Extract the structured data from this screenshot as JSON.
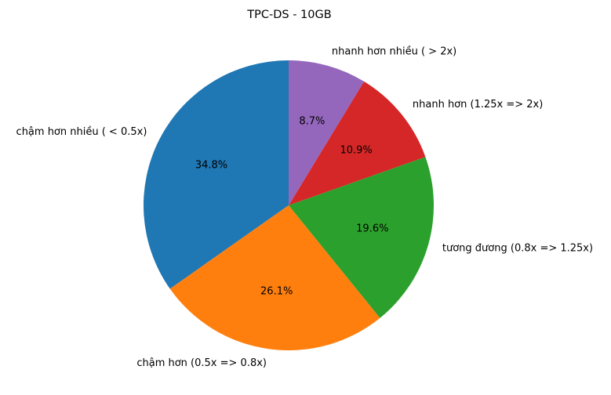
{
  "chart_data": {
    "type": "pie",
    "title": "TPC-DS - 10GB",
    "start_angle_deg": 90,
    "direction": "counterclockwise",
    "colors": [
      "#1f77b4",
      "#ff7f0e",
      "#2ca02c",
      "#d62728",
      "#9467bd"
    ],
    "slices": [
      {
        "label": "chậm hơn nhiều ( < 0.5x)",
        "value": 34.8,
        "pct_label": "34.8%",
        "color": "#1f77b4"
      },
      {
        "label": "chậm hơn (0.5x => 0.8x)",
        "value": 26.1,
        "pct_label": "26.1%",
        "color": "#ff7f0e"
      },
      {
        "label": "tương đương (0.8x => 1.25x)",
        "value": 19.6,
        "pct_label": "19.6%",
        "color": "#2ca02c"
      },
      {
        "label": "nhanh hơn (1.25x => 2x)",
        "value": 10.9,
        "pct_label": "10.9%",
        "color": "#d62728"
      },
      {
        "label": "nhanh hơn nhiều ( > 2x)",
        "value": 8.7,
        "pct_label": "8.7%",
        "color": "#9467bd"
      }
    ]
  }
}
